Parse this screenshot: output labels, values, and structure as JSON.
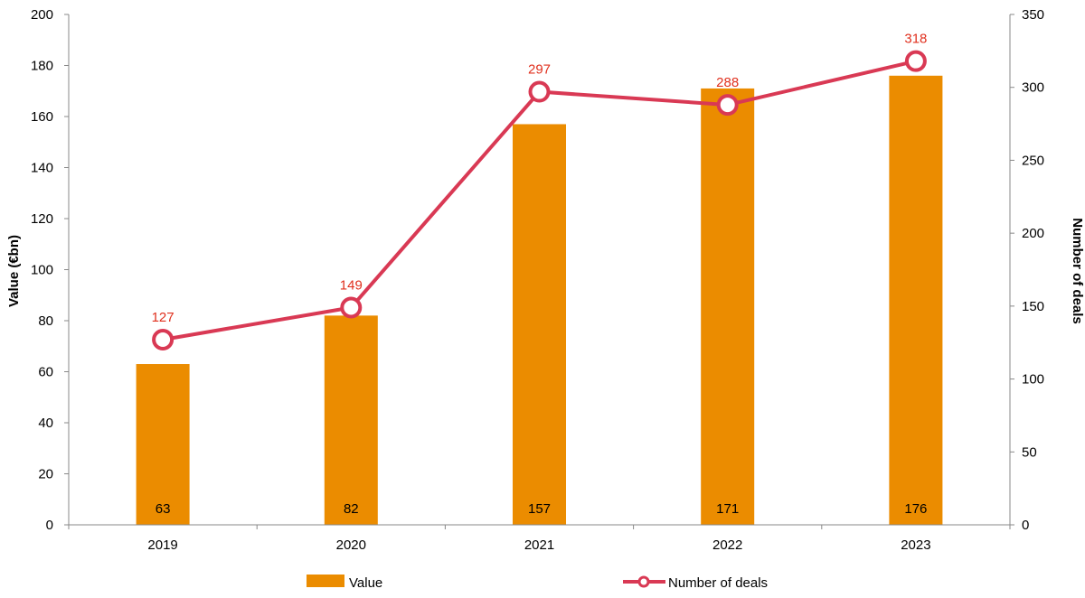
{
  "chart_data": {
    "type": "bar",
    "categories": [
      "2019",
      "2020",
      "2021",
      "2022",
      "2023"
    ],
    "series": [
      {
        "name": "Value",
        "type": "bar",
        "axis": "left",
        "values": [
          63,
          82,
          157,
          171,
          176
        ],
        "color": "#EB8C00"
      },
      {
        "name": "Number of deals",
        "type": "line",
        "axis": "right",
        "values": [
          127,
          149,
          297,
          288,
          318
        ],
        "color": "#D93954",
        "label_color": "#E0301E"
      }
    ],
    "ylabel": "Value (€bn)",
    "y2label": "Number of deals",
    "ylim": [
      0,
      200
    ],
    "yticks": [
      0,
      20,
      40,
      60,
      80,
      100,
      120,
      140,
      160,
      180,
      200
    ],
    "y2lim": [
      0,
      350
    ],
    "y2ticks": [
      0,
      50,
      100,
      150,
      200,
      250,
      300,
      350
    ],
    "grid": false,
    "legend": "bottom"
  }
}
